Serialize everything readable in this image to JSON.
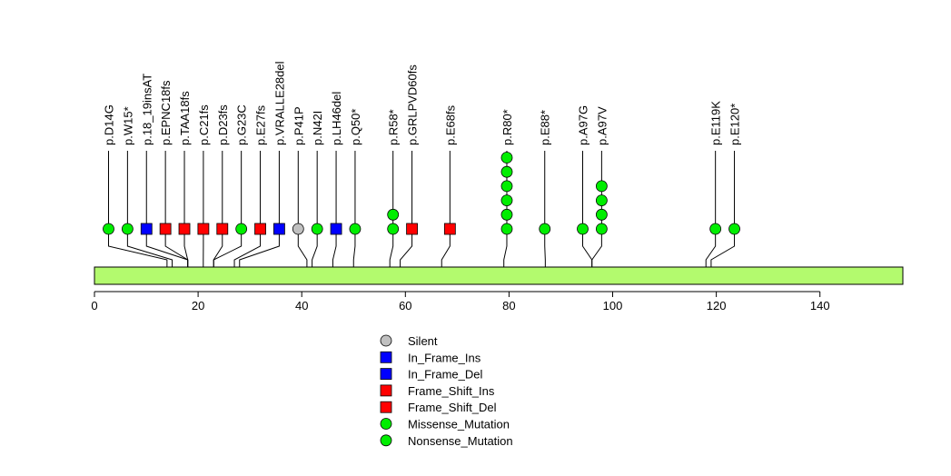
{
  "chart_data": {
    "type": "lollipop",
    "protein_length": 156,
    "x_ticks": [
      0,
      20,
      40,
      60,
      80,
      100,
      120,
      140
    ],
    "domain_color": "#b3fa6e",
    "colors": {
      "Silent": "#c0c0c0",
      "In_Frame_Ins": "#0000ff",
      "In_Frame_Del": "#0000ff",
      "Frame_Shift_Ins": "#ff0000",
      "Frame_Shift_Del": "#ff0000",
      "Missense_Mutation": "#00ee00",
      "Nonsense_Mutation": "#00ee00"
    },
    "mutations": [
      {
        "label": "p.D14G",
        "position": 14,
        "count": 1,
        "shape": "circle",
        "color": "#00ee00"
      },
      {
        "label": "p.W15*",
        "position": 15,
        "count": 1,
        "shape": "circle",
        "color": "#00ee00"
      },
      {
        "label": "p.18_19insAT",
        "position": 18,
        "count": 1,
        "shape": "square",
        "color": "#0000ff"
      },
      {
        "label": "p.EPNC18fs",
        "position": 18,
        "count": 1,
        "shape": "square",
        "color": "#ff0000"
      },
      {
        "label": "p.TAA18fs",
        "position": 18,
        "count": 1,
        "shape": "square",
        "color": "#ff0000"
      },
      {
        "label": "p.C21fs",
        "position": 21,
        "count": 1,
        "shape": "square",
        "color": "#ff0000"
      },
      {
        "label": "p.D23fs",
        "position": 23,
        "count": 1,
        "shape": "square",
        "color": "#ff0000"
      },
      {
        "label": "p.G23C",
        "position": 23,
        "count": 1,
        "shape": "circle",
        "color": "#00ee00"
      },
      {
        "label": "p.E27fs",
        "position": 27,
        "count": 1,
        "shape": "square",
        "color": "#ff0000"
      },
      {
        "label": "p.VRALLE28del",
        "position": 28,
        "count": 1,
        "shape": "square",
        "color": "#0000ff"
      },
      {
        "label": "p.P41P",
        "position": 41,
        "count": 1,
        "shape": "circle",
        "color": "#c0c0c0"
      },
      {
        "label": "p.N42I",
        "position": 42,
        "count": 1,
        "shape": "circle",
        "color": "#00ee00"
      },
      {
        "label": "p.LH46del",
        "position": 46,
        "count": 1,
        "shape": "square",
        "color": "#0000ff"
      },
      {
        "label": "p.Q50*",
        "position": 50,
        "count": 1,
        "shape": "circle",
        "color": "#00ee00"
      },
      {
        "label": "p.R58*",
        "position": 57,
        "count": 2,
        "shape": "circle",
        "color": "#00ee00"
      },
      {
        "label": "p.GRLPVD60fs",
        "position": 59,
        "count": 1,
        "shape": "square",
        "color": "#ff0000"
      },
      {
        "label": "p.E68fs",
        "position": 67,
        "count": 1,
        "shape": "square",
        "color": "#ff0000"
      },
      {
        "label": "p.R80*",
        "position": 79,
        "count": 6,
        "shape": "circle",
        "color": "#00ee00"
      },
      {
        "label": "p.E88*",
        "position": 87,
        "count": 1,
        "shape": "circle",
        "color": "#00ee00"
      },
      {
        "label": "p.A97G",
        "position": 96,
        "count": 1,
        "shape": "circle",
        "color": "#00ee00"
      },
      {
        "label": "p.A97V",
        "position": 96,
        "count": 4,
        "shape": "circle",
        "color": "#00ee00"
      },
      {
        "label": "p.E119K",
        "position": 118,
        "count": 1,
        "shape": "circle",
        "color": "#00ee00"
      },
      {
        "label": "p.E120*",
        "position": 119,
        "count": 1,
        "shape": "circle",
        "color": "#00ee00"
      }
    ],
    "legend": [
      {
        "label": "Silent",
        "shape": "circle",
        "color": "#c0c0c0"
      },
      {
        "label": "In_Frame_Ins",
        "shape": "square",
        "color": "#0000ff"
      },
      {
        "label": "In_Frame_Del",
        "shape": "square",
        "color": "#0000ff"
      },
      {
        "label": "Frame_Shift_Ins",
        "shape": "square",
        "color": "#ff0000"
      },
      {
        "label": "Frame_Shift_Del",
        "shape": "square",
        "color": "#ff0000"
      },
      {
        "label": "Missense_Mutation",
        "shape": "circle",
        "color": "#00ee00"
      },
      {
        "label": "Nonsense_Mutation",
        "shape": "circle",
        "color": "#00ee00"
      }
    ]
  }
}
